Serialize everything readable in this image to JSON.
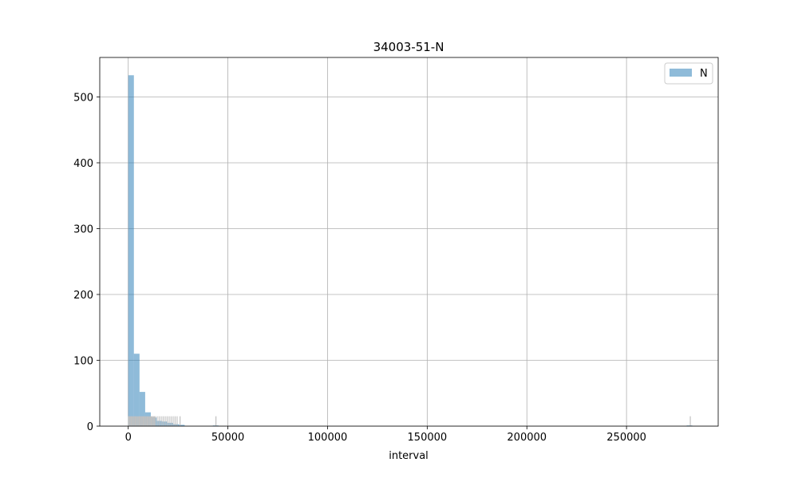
{
  "chart_data": {
    "type": "bar",
    "title": "34003-51-N",
    "xlabel": "interval",
    "ylabel": "",
    "xlim": [
      -14300,
      296000
    ],
    "ylim": [
      0,
      560
    ],
    "xticks": [
      0,
      50000,
      100000,
      150000,
      200000,
      250000
    ],
    "xtick_labels": [
      "0",
      "50000",
      "100000",
      "150000",
      "200000",
      "250000"
    ],
    "yticks": [
      0,
      100,
      200,
      300,
      400,
      500
    ],
    "ytick_labels": [
      "0",
      "100",
      "200",
      "300",
      "400",
      "500"
    ],
    "grid": true,
    "legend": {
      "position": "top-right",
      "entries": [
        "N"
      ]
    },
    "bin_width": 2830,
    "series": [
      {
        "name": "N",
        "color": "#1f77b4",
        "alpha": 0.5,
        "bins": [
          {
            "x0": 0,
            "x1": 2830,
            "count": 533
          },
          {
            "x0": 2830,
            "x1": 5660,
            "count": 110
          },
          {
            "x0": 5660,
            "x1": 8490,
            "count": 52
          },
          {
            "x0": 8490,
            "x1": 11320,
            "count": 21
          },
          {
            "x0": 11320,
            "x1": 14150,
            "count": 13
          },
          {
            "x0": 14150,
            "x1": 16980,
            "count": 8
          },
          {
            "x0": 16980,
            "x1": 19810,
            "count": 7
          },
          {
            "x0": 19810,
            "x1": 22640,
            "count": 5
          },
          {
            "x0": 22640,
            "x1": 25470,
            "count": 3
          },
          {
            "x0": 25470,
            "x1": 28300,
            "count": 2
          },
          {
            "x0": 42450,
            "x1": 45280,
            "count": 1
          },
          {
            "x0": 280170,
            "x1": 283000,
            "count": 1
          }
        ]
      }
    ],
    "rug": {
      "color": "#c0c0c0",
      "height_in_counts": 15,
      "values": [
        200,
        600,
        1000,
        1500,
        2000,
        2500,
        3000,
        3500,
        4000,
        4500,
        5000,
        5500,
        6000,
        6500,
        7000,
        7500,
        8000,
        8500,
        9000,
        9500,
        10000,
        10500,
        11000,
        11500,
        12000,
        12500,
        13000,
        13500,
        14500,
        15500,
        16500,
        17500,
        18500,
        19500,
        20500,
        21500,
        22500,
        23500,
        24500,
        26000,
        44000,
        282000
      ]
    }
  }
}
